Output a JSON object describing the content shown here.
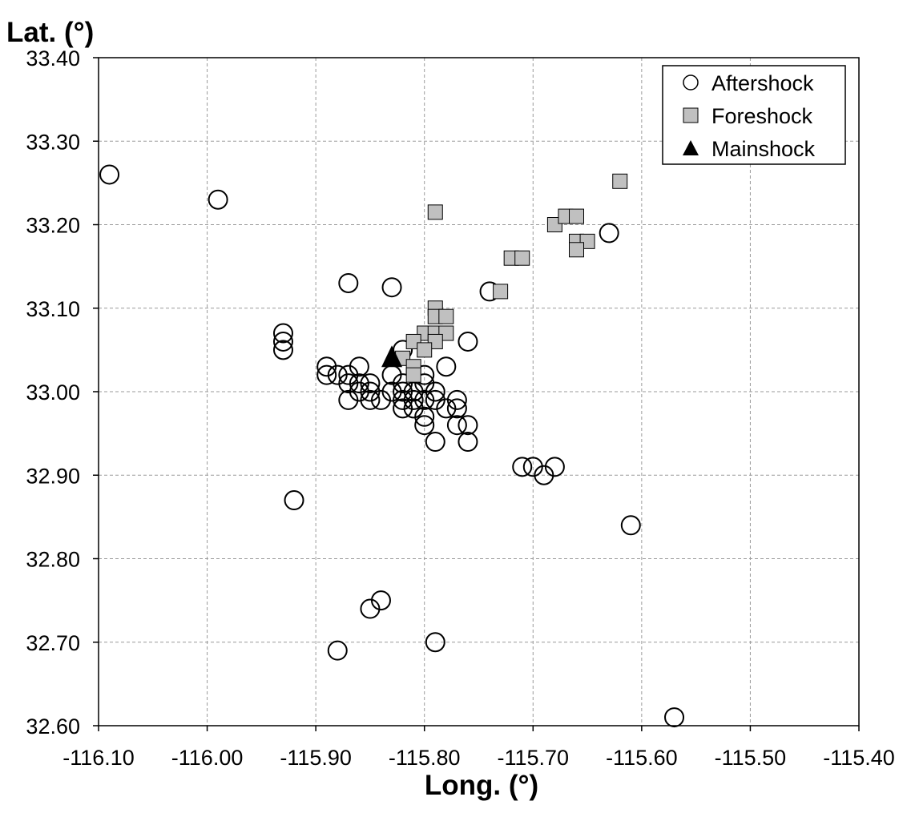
{
  "chart_data": {
    "type": "scatter",
    "xlabel": "Long. (°)",
    "ylabel": "Lat. (°)",
    "xlim": [
      -116.1,
      -115.4
    ],
    "ylim": [
      32.6,
      33.4
    ],
    "x_ticks": [
      -116.1,
      -116.0,
      -115.9,
      -115.8,
      -115.7,
      -115.6,
      -115.5,
      -115.4
    ],
    "y_ticks": [
      32.6,
      32.7,
      32.8,
      32.9,
      33.0,
      33.1,
      33.2,
      33.3,
      33.4
    ],
    "x_tick_labels": [
      "-116.10",
      "-116.00",
      "-115.90",
      "-115.80",
      "-115.70",
      "-115.60",
      "-115.50",
      "-115.40"
    ],
    "y_tick_labels": [
      "32.60",
      "32.70",
      "32.80",
      "32.90",
      "33.00",
      "33.10",
      "33.20",
      "33.30",
      "33.40"
    ],
    "grid": true,
    "legend_position": "top-right",
    "series": [
      {
        "name": "Aftershock",
        "marker": "open-circle",
        "color": "#000000",
        "points": [
          [
            -116.09,
            33.26
          ],
          [
            -115.99,
            33.23
          ],
          [
            -115.87,
            33.13
          ],
          [
            -115.83,
            33.125
          ],
          [
            -115.74,
            33.12
          ],
          [
            -115.63,
            33.19
          ],
          [
            -115.93,
            33.07
          ],
          [
            -115.93,
            33.06
          ],
          [
            -115.93,
            33.05
          ],
          [
            -115.82,
            33.05
          ],
          [
            -115.76,
            33.06
          ],
          [
            -115.78,
            33.03
          ],
          [
            -115.89,
            33.03
          ],
          [
            -115.89,
            33.02
          ],
          [
            -115.88,
            33.02
          ],
          [
            -115.87,
            33.02
          ],
          [
            -115.86,
            33.03
          ],
          [
            -115.87,
            33.01
          ],
          [
            -115.86,
            33.01
          ],
          [
            -115.85,
            33.01
          ],
          [
            -115.86,
            33.0
          ],
          [
            -115.85,
            33.0
          ],
          [
            -115.87,
            32.99
          ],
          [
            -115.85,
            32.99
          ],
          [
            -115.84,
            32.99
          ],
          [
            -115.83,
            33.02
          ],
          [
            -115.83,
            33.0
          ],
          [
            -115.82,
            33.01
          ],
          [
            -115.82,
            33.0
          ],
          [
            -115.82,
            32.99
          ],
          [
            -115.82,
            32.98
          ],
          [
            -115.81,
            33.0
          ],
          [
            -115.81,
            32.99
          ],
          [
            -115.81,
            32.98
          ],
          [
            -115.8,
            33.02
          ],
          [
            -115.8,
            33.01
          ],
          [
            -115.8,
            32.99
          ],
          [
            -115.8,
            32.97
          ],
          [
            -115.8,
            32.96
          ],
          [
            -115.79,
            33.0
          ],
          [
            -115.79,
            32.99
          ],
          [
            -115.78,
            32.98
          ],
          [
            -115.77,
            32.99
          ],
          [
            -115.77,
            32.98
          ],
          [
            -115.77,
            32.96
          ],
          [
            -115.76,
            32.96
          ],
          [
            -115.79,
            32.94
          ],
          [
            -115.76,
            32.94
          ],
          [
            -115.71,
            32.91
          ],
          [
            -115.7,
            32.91
          ],
          [
            -115.69,
            32.9
          ],
          [
            -115.68,
            32.91
          ],
          [
            -115.92,
            32.87
          ],
          [
            -115.61,
            32.84
          ],
          [
            -115.84,
            32.75
          ],
          [
            -115.85,
            32.74
          ],
          [
            -115.79,
            32.7
          ],
          [
            -115.88,
            32.69
          ],
          [
            -115.57,
            32.61
          ]
        ]
      },
      {
        "name": "Foreshock",
        "marker": "square",
        "color": "#c0c0c0",
        "points": [
          [
            -115.62,
            33.252
          ],
          [
            -115.79,
            33.215
          ],
          [
            -115.68,
            33.2
          ],
          [
            -115.67,
            33.21
          ],
          [
            -115.66,
            33.21
          ],
          [
            -115.66,
            33.18
          ],
          [
            -115.65,
            33.18
          ],
          [
            -115.66,
            33.17
          ],
          [
            -115.72,
            33.16
          ],
          [
            -115.71,
            33.16
          ],
          [
            -115.73,
            33.12
          ],
          [
            -115.79,
            33.1
          ],
          [
            -115.79,
            33.09
          ],
          [
            -115.78,
            33.09
          ],
          [
            -115.8,
            33.07
          ],
          [
            -115.79,
            33.07
          ],
          [
            -115.78,
            33.07
          ],
          [
            -115.81,
            33.06
          ],
          [
            -115.79,
            33.06
          ],
          [
            -115.8,
            33.05
          ],
          [
            -115.82,
            33.04
          ],
          [
            -115.81,
            33.03
          ],
          [
            -115.81,
            33.02
          ]
        ]
      },
      {
        "name": "Mainshock",
        "marker": "filled-triangle",
        "color": "#000000",
        "points": [
          [
            -115.83,
            33.04
          ]
        ]
      }
    ]
  }
}
